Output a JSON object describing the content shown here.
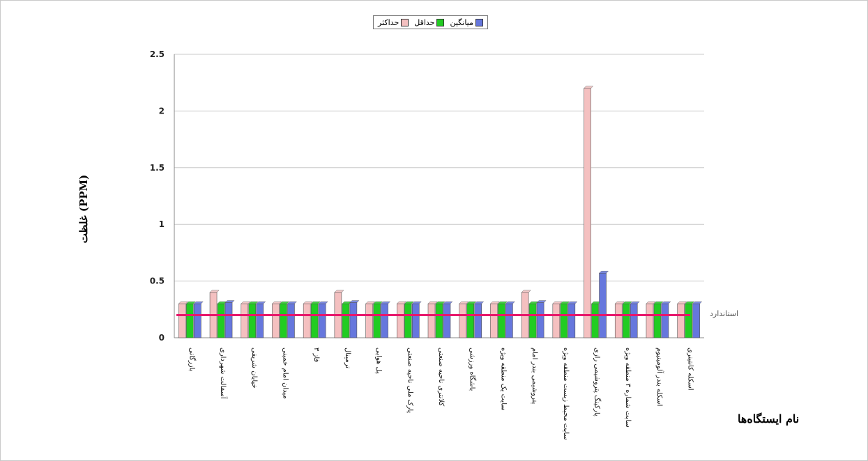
{
  "chart_data": {
    "type": "bar",
    "title": "",
    "ylabel": "غلظت (PPM)",
    "xlabel": "نام ایستگاه‌ها",
    "ylim": [
      0,
      2.5
    ],
    "yticks": [
      0,
      0.5,
      1,
      1.5,
      2,
      2.5
    ],
    "grid": true,
    "legend_position": "top",
    "categories": [
      "بازرگانی",
      "آسفالت شهرداری",
      "خیابان شریفی",
      "میدان امام خمینی",
      "فاز ۳",
      "ترمینال",
      "پل هوایی",
      "پارک ملی ناحیه صنعتی",
      "کلانتری ناحیه صنعتی",
      "باشگاه ورزشی",
      "سایت یک منطقه ویژه",
      "پتروشیمی بندر امام",
      "سایت محیط زیست منطقه ویژه",
      "پارکینگ پتروشیمی رازی",
      "سایت شماره ۳ منطقه ویژه",
      "اسکله بندر آلومینیوم",
      "اسکله کانتینری"
    ],
    "series": [
      {
        "name": "حداکثر",
        "color": "#f4c0c0",
        "values": [
          0.3,
          0.4,
          0.3,
          0.3,
          0.3,
          0.4,
          0.3,
          0.3,
          0.3,
          0.3,
          0.3,
          0.4,
          0.3,
          2.2,
          0.3,
          0.3,
          0.3
        ]
      },
      {
        "name": "حداقل",
        "color": "#22cc22",
        "values": [
          0.3,
          0.3,
          0.3,
          0.3,
          0.3,
          0.3,
          0.3,
          0.3,
          0.3,
          0.3,
          0.3,
          0.3,
          0.3,
          0.3,
          0.3,
          0.3,
          0.3
        ]
      },
      {
        "name": "میانگین",
        "color": "#6677dd",
        "values": [
          0.3,
          0.31,
          0.3,
          0.3,
          0.3,
          0.31,
          0.3,
          0.3,
          0.3,
          0.3,
          0.3,
          0.31,
          0.3,
          0.57,
          0.3,
          0.3,
          0.3
        ]
      }
    ],
    "standard": {
      "label": "استاندارد",
      "value": 0.2,
      "color": "#e8176b"
    }
  },
  "legend": [
    {
      "label": "میانگین",
      "color": "#6677dd"
    },
    {
      "label": "حداقل",
      "color": "#22cc22"
    },
    {
      "label": "حداکثر",
      "color": "#f4c0c0"
    }
  ]
}
